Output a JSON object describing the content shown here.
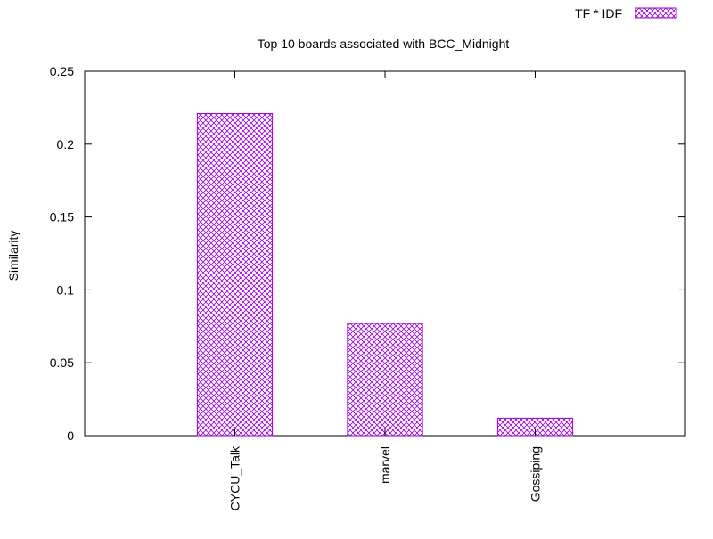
{
  "chart_data": {
    "type": "bar",
    "title": "Top 10 boards associated with BCC_Midnight",
    "xlabel": "",
    "ylabel": "Similarity",
    "ylim": [
      0,
      0.25
    ],
    "yticks": [
      "0",
      "0.05",
      "0.1",
      "0.15",
      "0.2",
      "0.25"
    ],
    "categories": [
      "CYCU_Talk",
      "marvel",
      "Gossiping"
    ],
    "series": [
      {
        "name": "TF * IDF",
        "values": [
          0.221,
          0.077,
          0.012
        ]
      }
    ],
    "grid": false,
    "legend": "top-right",
    "colors": {
      "bar": "#9400d3",
      "axis": "#000000"
    }
  }
}
